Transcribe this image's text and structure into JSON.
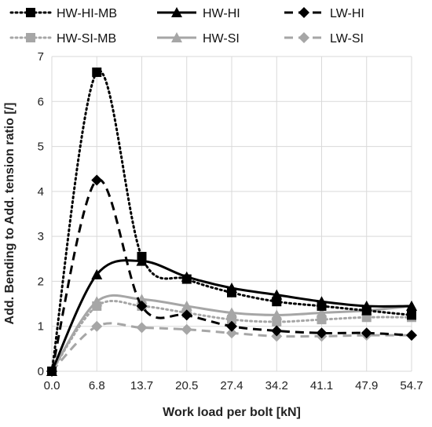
{
  "chart_data": {
    "type": "line",
    "title": "",
    "xlabel": "Work load per bolt [kN]",
    "ylabel": "Add. Bending to Add. tension ratio [/]",
    "x": [
      0.0,
      6.8,
      13.7,
      20.5,
      27.4,
      34.2,
      41.1,
      47.9,
      54.7
    ],
    "x_tick_labels": [
      "0.0",
      "6.8",
      "13.7",
      "20.5",
      "27.4",
      "34.2",
      "41.1",
      "47.9",
      "54.7"
    ],
    "ylim": [
      0,
      7
    ],
    "y_ticks": [
      0,
      1,
      2,
      3,
      4,
      5,
      6,
      7
    ],
    "grid": true,
    "legend_position": "top",
    "series": [
      {
        "name": "HW-HI-MB",
        "values": [
          0,
          6.65,
          2.55,
          2.05,
          1.75,
          1.55,
          1.45,
          1.35,
          1.25
        ],
        "color": "#000000",
        "dash": "dotted",
        "marker": "square"
      },
      {
        "name": "HW-HI",
        "values": [
          0,
          2.15,
          2.45,
          2.1,
          1.85,
          1.7,
          1.55,
          1.45,
          1.45
        ],
        "color": "#000000",
        "dash": "solid",
        "marker": "triangle"
      },
      {
        "name": "LW-HI",
        "values": [
          0,
          4.25,
          1.45,
          1.25,
          1.0,
          0.9,
          0.85,
          0.85,
          0.8
        ],
        "color": "#000000",
        "dash": "dashed",
        "marker": "diamond"
      },
      {
        "name": "HW-SI-MB",
        "values": [
          0,
          1.45,
          1.45,
          1.3,
          1.15,
          1.1,
          1.15,
          1.2,
          1.2
        ],
        "color": "#a6a6a6",
        "dash": "dotted",
        "marker": "square"
      },
      {
        "name": "HW-SI",
        "values": [
          0,
          1.55,
          1.6,
          1.45,
          1.3,
          1.25,
          1.3,
          1.35,
          1.45
        ],
        "color": "#a6a6a6",
        "dash": "solid",
        "marker": "triangle"
      },
      {
        "name": "LW-SI",
        "values": [
          0,
          1.0,
          0.97,
          0.93,
          0.85,
          0.78,
          0.78,
          0.8,
          0.8
        ],
        "color": "#a6a6a6",
        "dash": "dashed",
        "marker": "diamond"
      }
    ]
  }
}
